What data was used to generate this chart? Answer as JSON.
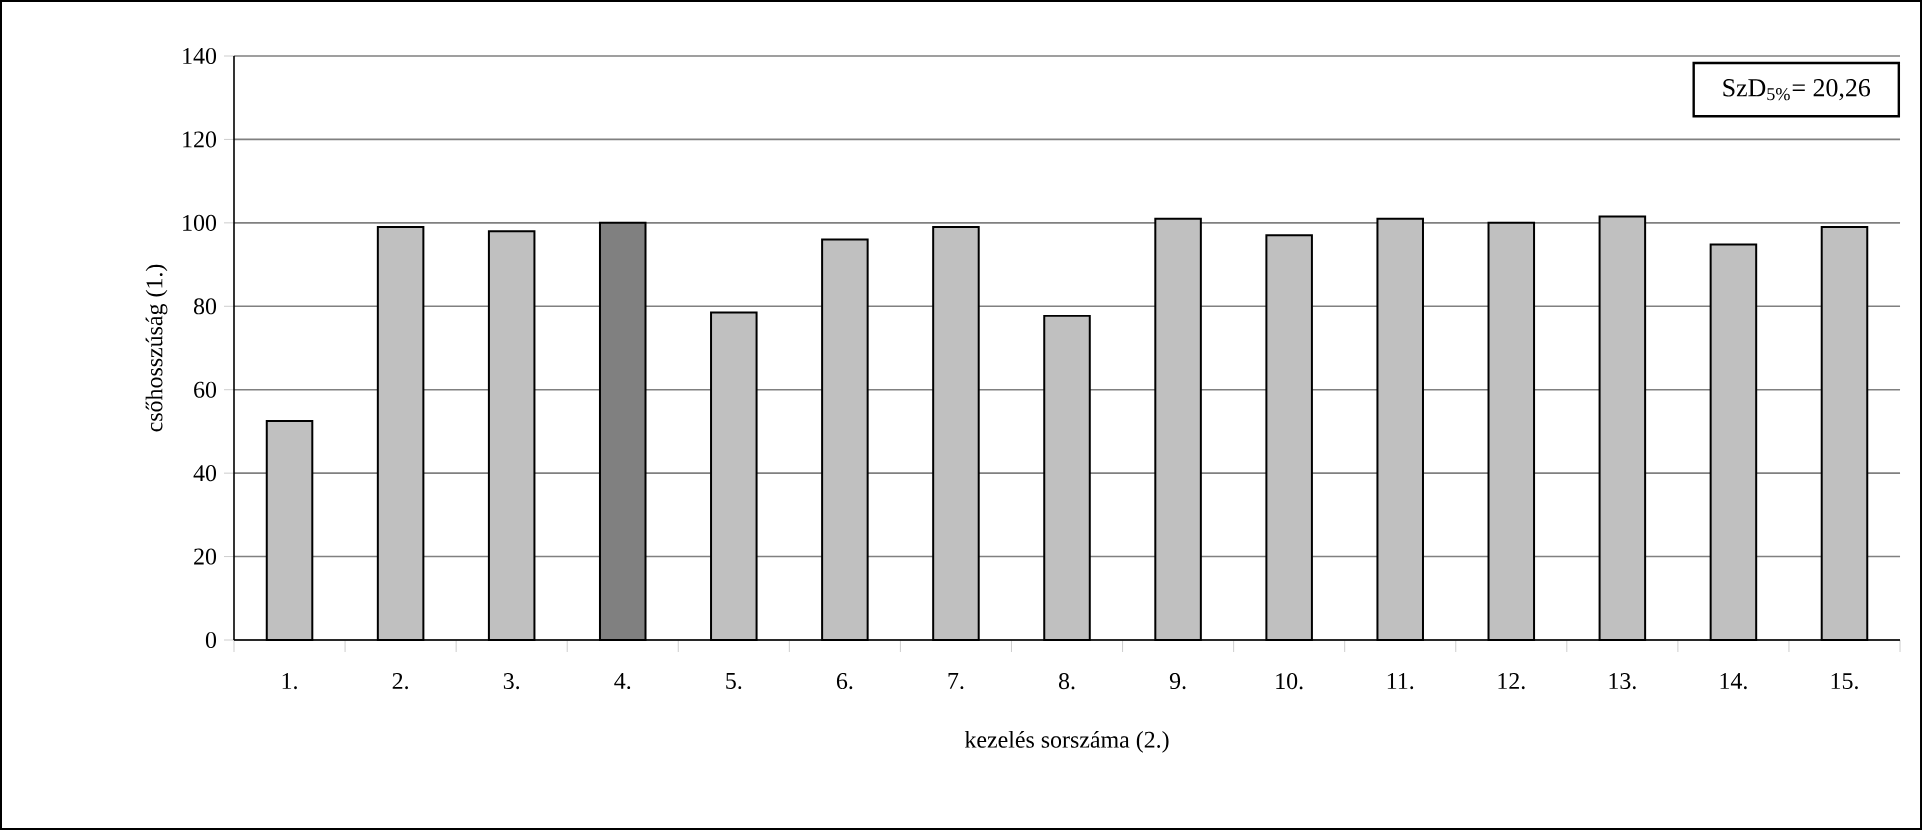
{
  "chart_data": {
    "type": "bar",
    "categories": [
      "1.",
      "2.",
      "3.",
      "4.",
      "5.",
      "6.",
      "7.",
      "8.",
      "9.",
      "10.",
      "11.",
      "12.",
      "13.",
      "14.",
      "15."
    ],
    "values": [
      52.5,
      99,
      98,
      100,
      78.5,
      96,
      99,
      77.7,
      101,
      97,
      101,
      100,
      101.5,
      94.8,
      99
    ],
    "colors": [
      "#c0c0c0",
      "#c0c0c0",
      "#c0c0c0",
      "#808080",
      "#c0c0c0",
      "#c0c0c0",
      "#c0c0c0",
      "#c0c0c0",
      "#c0c0c0",
      "#c0c0c0",
      "#c0c0c0",
      "#c0c0c0",
      "#c0c0c0",
      "#c0c0c0",
      "#c0c0c0"
    ],
    "xlabel": "kezelés sorszáma (2.)",
    "ylabel": "csőhosszúság (1.)",
    "ylim": [
      0,
      140
    ],
    "yticks": [
      0,
      20,
      40,
      60,
      80,
      100,
      120,
      140
    ],
    "grid": "y",
    "annotations": [
      "SzD$_{5%}$= 20,26"
    ]
  }
}
